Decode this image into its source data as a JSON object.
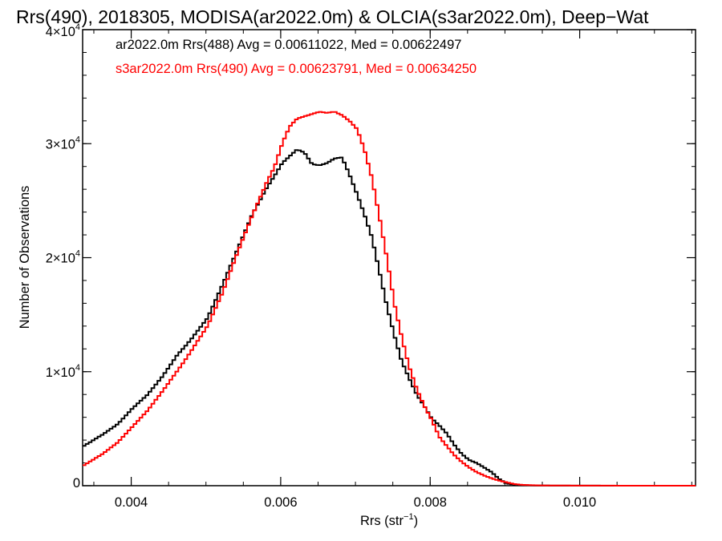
{
  "chart_data": {
    "type": "line",
    "title": "Rrs(490), 2018305, MODISA(ar2022.0m) & OLCIA(s3ar2022.0m), Deep−Wat",
    "xlabel_main": "Rrs (str",
    "xlabel_sup": "−1",
    "xlabel_close": ")",
    "ylabel": "Number of Observations",
    "xlim": [
      0.00335,
      0.01155
    ],
    "ylim": [
      0,
      40000
    ],
    "x_ticks": [
      {
        "value": 0.004,
        "label": "0.004"
      },
      {
        "value": 0.006,
        "label": "0.006"
      },
      {
        "value": 0.008,
        "label": "0.008"
      },
      {
        "value": 0.01,
        "label": "0.010"
      }
    ],
    "y_ticks": [
      {
        "value": 0,
        "base": "0",
        "exp": ""
      },
      {
        "value": 10000,
        "base": "1×10",
        "exp": "4"
      },
      {
        "value": 20000,
        "base": "2×10",
        "exp": "4"
      },
      {
        "value": 30000,
        "base": "3×10",
        "exp": "4"
      },
      {
        "value": 40000,
        "base": "4×10",
        "exp": "4"
      }
    ],
    "x_minor_step": 0.0005,
    "y_minor_step": 2000,
    "grid": false,
    "series": [
      {
        "name": "ar2022.0m Rrs(488) Avg = 0.00611022, Med = 0.00622497",
        "color": "#000000",
        "x": [
          0.00335,
          0.0036,
          0.0038,
          0.004,
          0.0042,
          0.0044,
          0.0046,
          0.0047,
          0.0048,
          0.005,
          0.0052,
          0.0054,
          0.0056,
          0.0058,
          0.0059,
          0.006,
          0.0061,
          0.0062,
          0.0063,
          0.0064,
          0.0065,
          0.0066,
          0.0067,
          0.0068,
          0.0069,
          0.007,
          0.0071,
          0.0072,
          0.0073,
          0.0074,
          0.0075,
          0.0076,
          0.0077,
          0.0078,
          0.0079,
          0.008,
          0.0081,
          0.0082,
          0.0083,
          0.0084,
          0.0085,
          0.0086,
          0.0087,
          0.0088,
          0.0089,
          0.009,
          0.0091,
          0.0092,
          0.0094,
          0.0096,
          0.01,
          0.0105,
          0.011,
          0.01155
        ],
        "values": [
          3500,
          4500,
          5400,
          6800,
          8000,
          9600,
          11500,
          12200,
          13000,
          14700,
          17600,
          20700,
          23800,
          26200,
          27200,
          28300,
          28900,
          29500,
          29200,
          28200,
          28100,
          28300,
          28700,
          28800,
          27300,
          25600,
          23800,
          21800,
          18800,
          15800,
          13200,
          10900,
          9400,
          8000,
          7000,
          5900,
          5300,
          4600,
          3600,
          2800,
          2250,
          2000,
          1600,
          1200,
          600,
          200,
          100,
          50,
          20,
          10,
          5,
          2,
          0,
          0
        ]
      },
      {
        "name": "s3ar2022.0m Rrs(490) Avg = 0.00623791, Med = 0.00634250",
        "color": "#ff0000",
        "x": [
          0.00335,
          0.0036,
          0.0038,
          0.004,
          0.0042,
          0.0044,
          0.0046,
          0.0047,
          0.0048,
          0.005,
          0.0052,
          0.0054,
          0.0056,
          0.0058,
          0.0059,
          0.006,
          0.0061,
          0.0062,
          0.0063,
          0.0064,
          0.0065,
          0.0066,
          0.0067,
          0.0068,
          0.0069,
          0.007,
          0.0071,
          0.0072,
          0.0073,
          0.0074,
          0.0075,
          0.0076,
          0.0077,
          0.0078,
          0.0079,
          0.008,
          0.0081,
          0.0082,
          0.0083,
          0.0084,
          0.0085,
          0.0086,
          0.0087,
          0.0088,
          0.0089,
          0.009,
          0.0091,
          0.0092,
          0.0094,
          0.0096,
          0.01,
          0.0105,
          0.011,
          0.01155
        ],
        "values": [
          1800,
          2800,
          3800,
          5200,
          6600,
          8300,
          10100,
          11000,
          12000,
          14000,
          16900,
          20400,
          23700,
          26700,
          28000,
          30000,
          31500,
          32200,
          32400,
          32600,
          32800,
          32700,
          32800,
          32500,
          32000,
          31300,
          29500,
          27000,
          23600,
          20000,
          16000,
          13000,
          10400,
          8500,
          7000,
          5800,
          4300,
          3500,
          2700,
          2100,
          1600,
          1200,
          900,
          650,
          450,
          300,
          150,
          80,
          30,
          15,
          8,
          3,
          0,
          0
        ]
      }
    ]
  }
}
